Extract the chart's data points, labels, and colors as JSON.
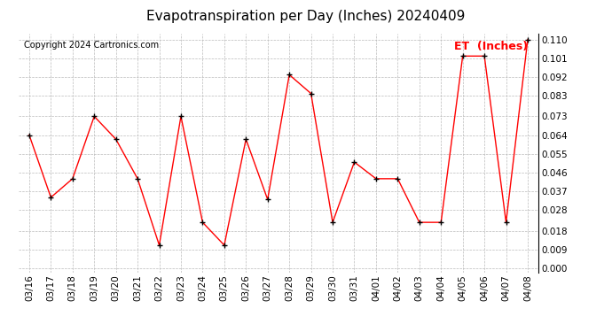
{
  "title": "Evapotranspiration per Day (Inches) 20240409",
  "copyright": "Copyright 2024 Cartronics.com",
  "legend_label": "ET  (Inches)",
  "dates": [
    "03/16",
    "03/17",
    "03/18",
    "03/19",
    "03/20",
    "03/21",
    "03/22",
    "03/23",
    "03/24",
    "03/25",
    "03/26",
    "03/27",
    "03/28",
    "03/29",
    "03/30",
    "03/31",
    "04/01",
    "04/02",
    "04/03",
    "04/04",
    "04/05",
    "04/06",
    "04/07",
    "04/08"
  ],
  "values": [
    0.064,
    0.034,
    0.043,
    0.073,
    0.062,
    0.043,
    0.011,
    0.073,
    0.022,
    0.011,
    0.062,
    0.033,
    0.093,
    0.084,
    0.022,
    0.051,
    0.043,
    0.043,
    0.022,
    0.022,
    0.102,
    0.102,
    0.022,
    0.11
  ],
  "ylim": [
    0.0,
    0.11
  ],
  "yticks": [
    0.0,
    0.009,
    0.018,
    0.028,
    0.037,
    0.046,
    0.055,
    0.064,
    0.073,
    0.083,
    0.092,
    0.101,
    0.11
  ],
  "line_color": "red",
  "marker_color": "black",
  "grid_color": "#bbbbbb",
  "bg_color": "white",
  "title_fontsize": 11,
  "copyright_fontsize": 7,
  "legend_fontsize": 9,
  "tick_fontsize": 7.5
}
